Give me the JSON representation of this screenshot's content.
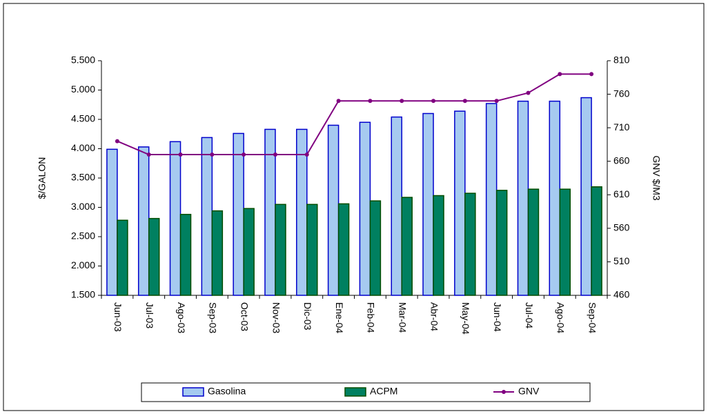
{
  "chart_data": {
    "type": "bar-line",
    "categories": [
      "Jun-03",
      "Jul-03",
      "Ago-03",
      "Sep-03",
      "Oct-03",
      "Nov-03",
      "Dic-03",
      "Ene-04",
      "Feb-04",
      "Mar-04",
      "Abr-04",
      "May-04",
      "Jun-04",
      "Jul-04",
      "Ago-04",
      "Sep-04"
    ],
    "series": [
      {
        "name": "Gasolina",
        "type": "bar",
        "color": "#a6caf0",
        "edge": "#0000cc",
        "values": [
          3990,
          4030,
          4120,
          4190,
          4260,
          4330,
          4330,
          4400,
          4450,
          4540,
          4600,
          4640,
          4770,
          4810,
          4810,
          4870
        ]
      },
      {
        "name": "ACPM",
        "type": "bar",
        "color": "#008060",
        "edge": "#004d00",
        "values": [
          2780,
          2810,
          2880,
          2940,
          2980,
          3050,
          3050,
          3060,
          3110,
          3170,
          3200,
          3240,
          3290,
          3310,
          3310,
          3350
        ]
      },
      {
        "name": "GNV",
        "type": "line",
        "axis": "y2",
        "color": "#800080",
        "values": [
          690,
          670,
          670,
          670,
          670,
          670,
          670,
          750,
          750,
          750,
          750,
          750,
          750,
          762,
          790,
          790
        ]
      }
    ],
    "y_label": "$/GALON",
    "y2_label": "GNV $/M3",
    "ylim": [
      1500,
      5500
    ],
    "yticks": [
      {
        "value": 1500,
        "label": "1.500"
      },
      {
        "value": 2000,
        "label": "2.000"
      },
      {
        "value": 2500,
        "label": "2.500"
      },
      {
        "value": 3000,
        "label": "3.000"
      },
      {
        "value": 3500,
        "label": "3.500"
      },
      {
        "value": 4000,
        "label": "4.000"
      },
      {
        "value": 4500,
        "label": "4.500"
      },
      {
        "value": 5000,
        "label": "5.000"
      },
      {
        "value": 5500,
        "label": "5.500"
      }
    ],
    "y2lim": [
      460,
      810
    ],
    "y2ticks": [
      460,
      510,
      560,
      610,
      660,
      710,
      760,
      810
    ],
    "legend": "bottom"
  }
}
